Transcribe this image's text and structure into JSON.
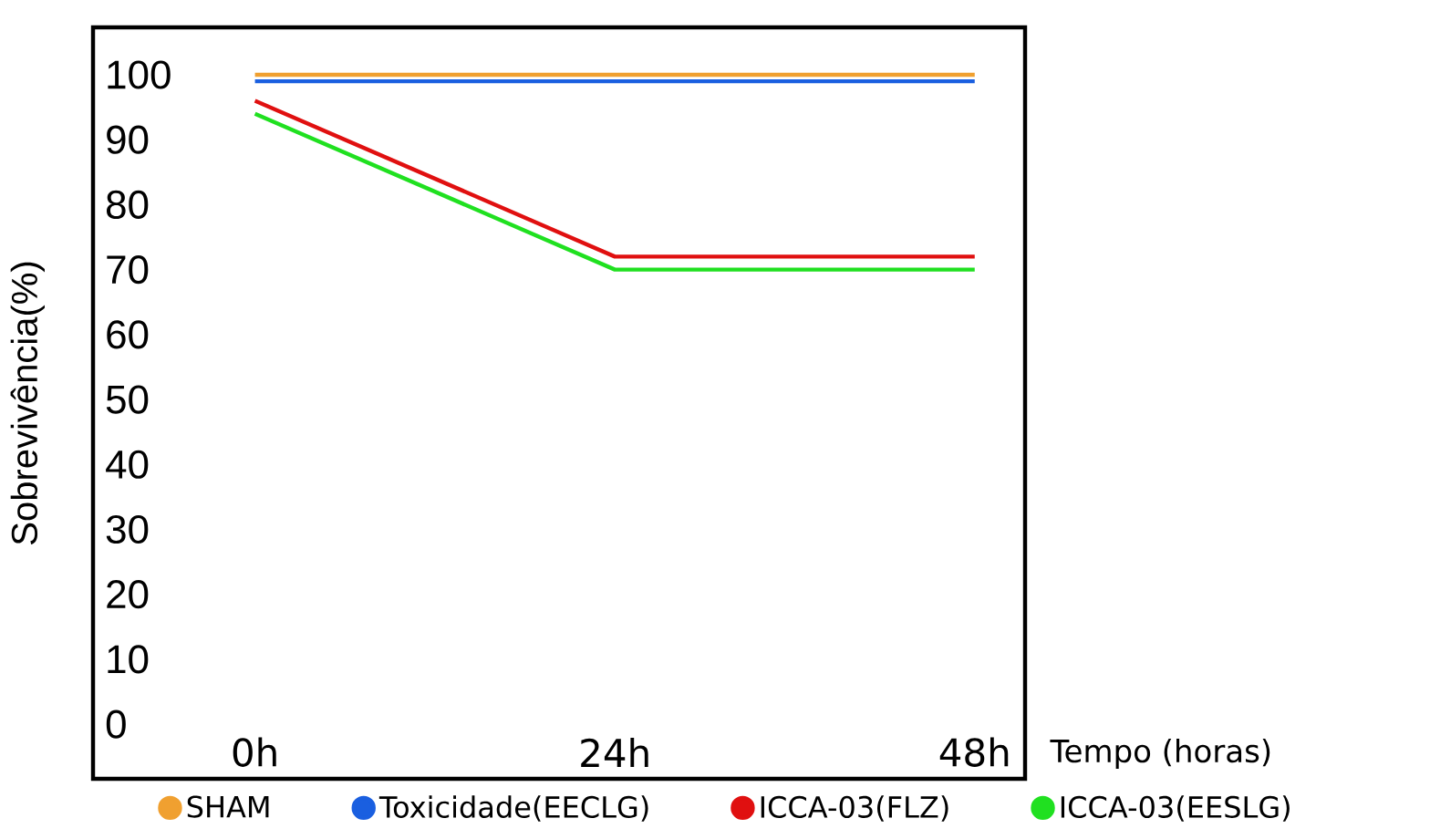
{
  "chart_data": {
    "type": "line",
    "ylabel": "Sobrevivência(%)",
    "xlabel": "Tempo (horas)",
    "categories": [
      "0h",
      "24h",
      "48h"
    ],
    "ylim": [
      -8.4,
      107.3
    ],
    "yticks": [
      0,
      10,
      20,
      30,
      40,
      50,
      60,
      70,
      80,
      90,
      100
    ],
    "series": [
      {
        "name": "SHAM",
        "color": "#f0a030",
        "values": [
          100,
          100,
          100
        ]
      },
      {
        "name": "Toxicidade(EECLG)",
        "color": "#1a5fe0",
        "values": [
          99,
          99,
          99
        ]
      },
      {
        "name": "ICCA-03(FLZ)",
        "color": "#e01010",
        "values": [
          96,
          72,
          72
        ]
      },
      {
        "name": "ICCA-03(EESLG)",
        "color": "#20e020",
        "values": [
          94,
          70,
          70
        ]
      }
    ],
    "grid": false,
    "legend": "bottom",
    "marker": "none",
    "line_style": "solid"
  }
}
